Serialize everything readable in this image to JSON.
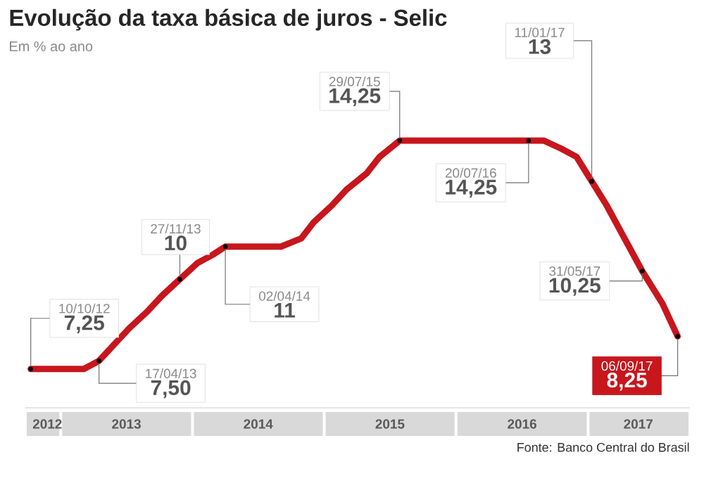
{
  "chart_data": {
    "type": "line",
    "title": "Evolução da taxa básica de juros - Selic",
    "subtitle": "Em % ao ano",
    "x": [
      "2012-10-10",
      "2012-11-28",
      "2013-01-16",
      "2013-03-06",
      "2013-04-17",
      "2013-05-29",
      "2013-07-10",
      "2013-08-28",
      "2013-10-09",
      "2013-11-27",
      "2014-01-15",
      "2014-02-26",
      "2014-04-02",
      "2014-05-28",
      "2014-07-16",
      "2014-09-03",
      "2014-10-29",
      "2014-12-03",
      "2015-01-21",
      "2015-03-04",
      "2015-04-29",
      "2015-06-03",
      "2015-07-29",
      "2015-09-02",
      "2015-10-21",
      "2015-11-25",
      "2016-01-20",
      "2016-03-02",
      "2016-04-27",
      "2016-06-08",
      "2016-07-20",
      "2016-08-31",
      "2016-10-19",
      "2016-11-30",
      "2017-01-11",
      "2017-02-22",
      "2017-04-12",
      "2017-05-31",
      "2017-07-26",
      "2017-09-06"
    ],
    "values": [
      7.25,
      7.25,
      7.25,
      7.25,
      7.5,
      8.0,
      8.5,
      9.0,
      9.5,
      10.0,
      10.5,
      10.75,
      11.0,
      11.0,
      11.0,
      11.0,
      11.25,
      11.75,
      12.25,
      12.75,
      13.25,
      13.75,
      14.25,
      14.25,
      14.25,
      14.25,
      14.25,
      14.25,
      14.25,
      14.25,
      14.25,
      14.25,
      14.0,
      13.75,
      13.0,
      12.25,
      11.25,
      10.25,
      9.25,
      8.25
    ],
    "value_labels": [
      "7,25",
      null,
      null,
      null,
      "7,50",
      null,
      null,
      null,
      null,
      "10",
      null,
      null,
      "11",
      null,
      null,
      null,
      null,
      null,
      null,
      null,
      null,
      null,
      "14,25",
      null,
      null,
      null,
      null,
      null,
      null,
      null,
      "14,25",
      null,
      null,
      null,
      "13",
      null,
      null,
      "10,25",
      null,
      "8,25"
    ],
    "color": "#c8161d",
    "xlim": [
      "2012-09-25",
      "2017-10-10"
    ],
    "xticks": [
      {
        "value": "2012-11-25",
        "label": "2012"
      },
      {
        "value": "2013-07-02",
        "label": "2013"
      },
      {
        "value": "2014-07-02",
        "label": "2014"
      },
      {
        "value": "2015-07-02",
        "label": "2015"
      },
      {
        "value": "2016-07-02",
        "label": "2016"
      },
      {
        "value": "2017-05-20",
        "label": "2017"
      }
    ],
    "tick_labels": "x",
    "annotations": [
      {
        "text": "10/10/12",
        "x": "2012-10-10",
        "y": 7.25
      },
      {
        "text": "17/04/13",
        "x": "2013-04-17",
        "y": 7.5
      },
      {
        "text": "27/11/13",
        "x": "2013-11-27",
        "y": 10
      },
      {
        "text": "02/04/14",
        "x": "2014-04-02",
        "y": 11
      },
      {
        "text": "29/07/15",
        "x": "2015-07-29",
        "y": 14.25
      },
      {
        "text": "20/07/16",
        "x": "2016-07-20",
        "y": 14.25
      },
      {
        "text": "11/01/17",
        "x": "2017-01-11",
        "y": 13
      },
      {
        "text": "31/05/17",
        "x": "2017-05-31",
        "y": 10.25
      },
      {
        "text": "06/09/17",
        "x": "2017-09-06",
        "y": 8.25
      },
      "Fonte: Banco Central do Brasil"
    ]
  }
}
